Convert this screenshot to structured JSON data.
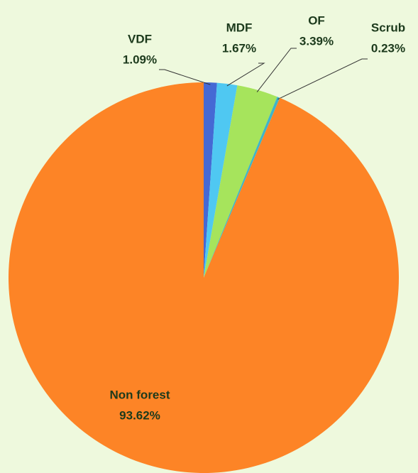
{
  "chart_data": {
    "type": "pie",
    "categories": [
      "VDF",
      "MDF",
      "OF",
      "Scrub",
      "Non forest"
    ],
    "values": [
      1.09,
      1.67,
      3.39,
      0.23,
      93.62
    ],
    "value_labels": [
      "1.09%",
      "1.67%",
      "3.39%",
      "0.23%",
      "93.62%"
    ],
    "colors": [
      "#4569d4",
      "#4fc8f2",
      "#a6e45c",
      "#3fb5c8",
      "#fd8426"
    ]
  }
}
